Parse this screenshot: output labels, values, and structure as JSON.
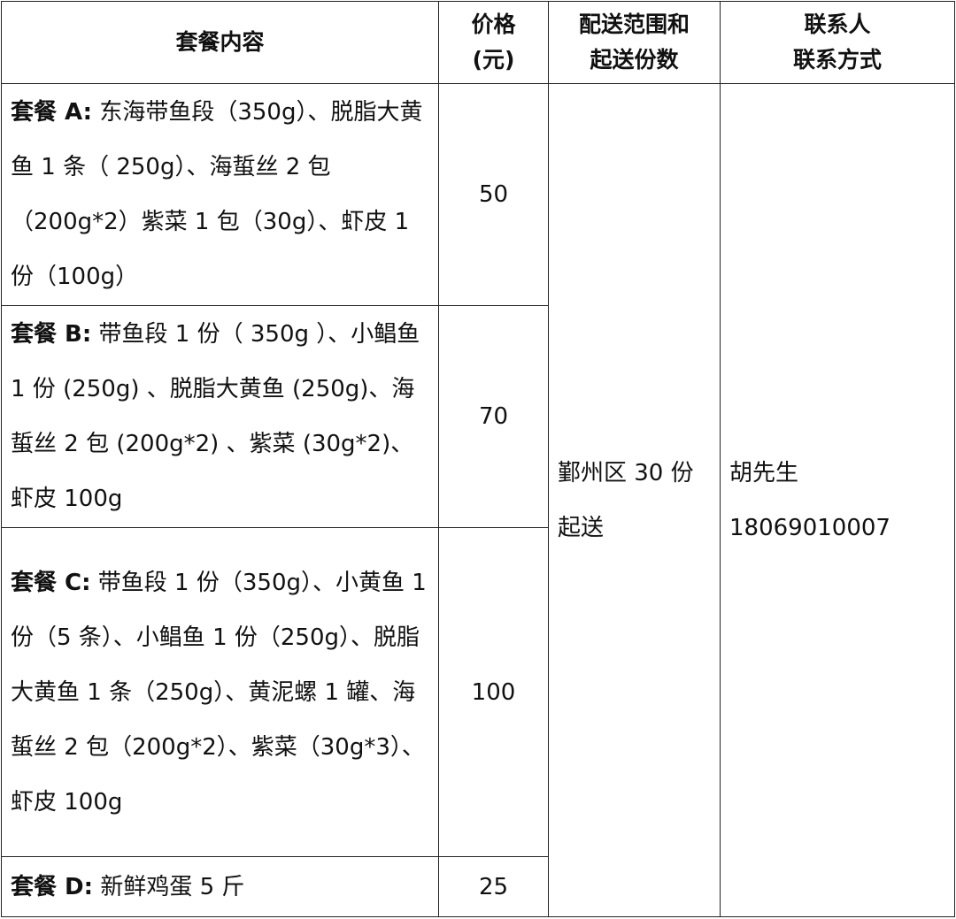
{
  "headers": {
    "content": "套餐内容",
    "price_l1": "价格",
    "price_l2": "(元)",
    "delivery_l1": "配送范围和",
    "delivery_l2": "起送份数",
    "contact_l1": "联系人",
    "contact_l2": "联系方式"
  },
  "packages": [
    {
      "label": "套餐 A:",
      "items": "东海带鱼段（350g）、脱脂大黄鱼 1 条（ 250g）、海蜇丝 2 包（200g*2）紫菜 1 包（30g）、虾皮 1 份（100g）",
      "price": "50"
    },
    {
      "label": "套餐 B:",
      "items": "带鱼段 1 份（ 350g ）、小鲳鱼 1 份 (250g) 、脱脂大黄鱼 (250g)、海蜇丝 2 包 (200g*2) 、紫菜 (30g*2)、虾皮 100g",
      "price": "70"
    },
    {
      "label": "套餐 C:",
      "items": "带鱼段 1 份（350g）、小黄鱼 1 份（5 条）、小鲳鱼 1 份（250g）、脱脂大黄鱼 1 条（250g）、黄泥螺 1 罐、海蜇丝 2 包（200g*2）、紫菜（30g*3）、虾皮 100g",
      "price": "100"
    },
    {
      "label": "套餐 D:",
      "items": "新鲜鸡蛋 5 斤",
      "price": "25"
    }
  ],
  "delivery": {
    "line1": "鄞州区 30 份",
    "line2": "起送"
  },
  "contact": {
    "name": "胡先生",
    "phone": "18069010007"
  }
}
